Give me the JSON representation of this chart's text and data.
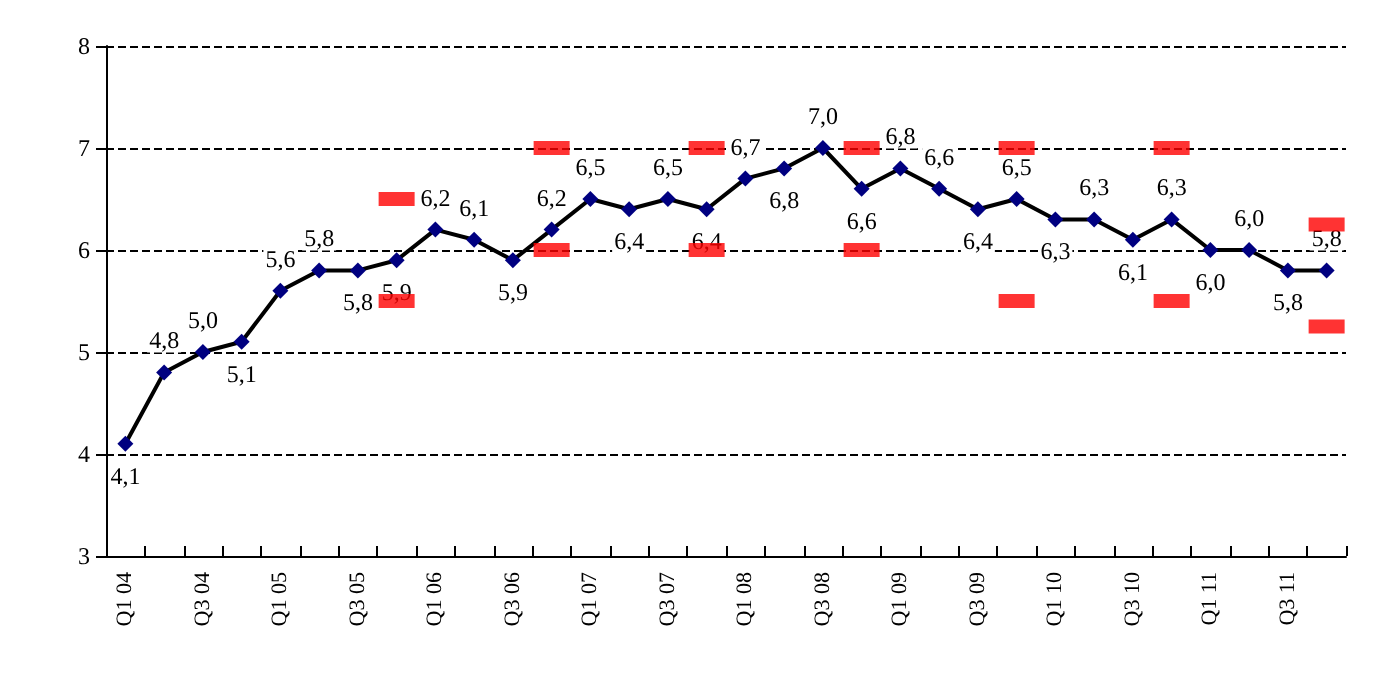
{
  "chart_data": {
    "type": "line",
    "categories": [
      "Q1 04",
      null,
      "Q3 04",
      null,
      "Q1 05",
      null,
      "Q3 05",
      null,
      "Q1 06",
      null,
      "Q3 06",
      null,
      "Q1 07",
      null,
      "Q3 07",
      null,
      "Q1 08",
      null,
      "Q3 08",
      null,
      "Q1 09",
      null,
      "Q3 09",
      null,
      "Q1 10",
      null,
      "Q3 10",
      null,
      "Q1 11",
      null,
      "Q3 11",
      null
    ],
    "series": [
      {
        "color": "#000080",
        "marker": "diamond",
        "values": [
          4.1,
          4.8,
          5.0,
          5.1,
          5.6,
          5.8,
          5.8,
          5.9,
          6.2,
          6.1,
          5.9,
          6.2,
          6.5,
          6.4,
          6.5,
          6.4,
          6.7,
          6.8,
          7.0,
          6.6,
          6.8,
          6.6,
          6.4,
          6.5,
          6.3,
          6.3,
          6.1,
          6.3,
          6.0,
          6.0,
          5.8,
          5.8
        ],
        "value_labels": [
          "4,1",
          "4,8",
          "5,0",
          "5,1",
          "5,6",
          "5,8",
          "5,8",
          "5,9",
          "6,2",
          "6,1",
          "5,9",
          "6,2",
          "6,5",
          "6,4",
          "6,5",
          "6,4",
          "6,7",
          "6,8",
          "7,0",
          "6,6",
          "6,8",
          "6,6",
          "6,4",
          "6,5",
          "6,3",
          "6,3",
          "6,1",
          "6,3",
          "6,0",
          "6,0",
          "5,8",
          "5,8"
        ]
      },
      {
        "type": "scatter",
        "color": "#ff0000",
        "values": [
          null,
          null,
          null,
          null,
          null,
          null,
          null,
          6.5,
          null,
          null,
          null,
          7,
          null,
          null,
          null,
          7,
          null,
          null,
          null,
          7,
          null,
          null,
          null,
          7,
          null,
          null,
          null,
          7,
          null,
          null,
          null,
          6.25
        ]
      },
      {
        "type": "scatter",
        "color": "#ff0000",
        "values": [
          null,
          null,
          null,
          null,
          null,
          null,
          null,
          5.5,
          null,
          null,
          null,
          6,
          null,
          null,
          null,
          6,
          null,
          null,
          null,
          6,
          null,
          null,
          null,
          5.5,
          null,
          null,
          null,
          5.5,
          null,
          null,
          null,
          5.25
        ]
      }
    ],
    "ylim": [
      3,
      8
    ],
    "yticks": [
      3,
      4,
      5,
      6,
      7,
      8
    ],
    "grid": "y",
    "line_style": "solid"
  }
}
